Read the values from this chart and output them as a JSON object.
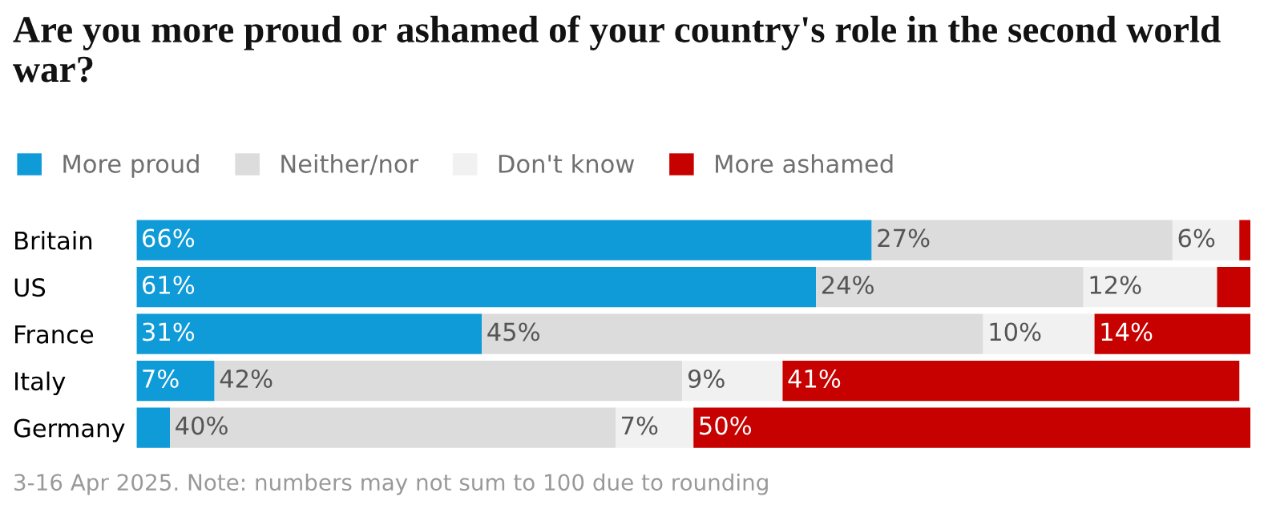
{
  "chart_data": {
    "type": "bar",
    "orientation": "horizontal",
    "stacked": true,
    "title": "Are you more proud or ashamed of your country's role in the second world war?",
    "categories": [
      "Britain",
      "US",
      "France",
      "Italy",
      "Germany"
    ],
    "series": [
      {
        "name": "More proud",
        "color": "#0f9ad8",
        "values": [
          66,
          61,
          31,
          7,
          3
        ],
        "value_labels": [
          "66%",
          "61%",
          "31%",
          "7%",
          null
        ]
      },
      {
        "name": "Neither/nor",
        "color": "#dcdcdc",
        "values": [
          27,
          24,
          45,
          42,
          40
        ],
        "value_labels": [
          "27%",
          "24%",
          "45%",
          "42%",
          "40%"
        ]
      },
      {
        "name": "Don't know",
        "color": "#f1f1f1",
        "values": [
          6,
          12,
          10,
          9,
          7
        ],
        "value_labels": [
          "6%",
          "12%",
          "10%",
          "9%",
          "7%"
        ]
      },
      {
        "name": "More ashamed",
        "color": "#c70000",
        "values": [
          1,
          3,
          14,
          41,
          50
        ],
        "value_labels": [
          null,
          null,
          "14%",
          "41%",
          "50%"
        ]
      }
    ],
    "legend": "top left",
    "annotations": [
      "3-16 Apr 2025. Note: numbers may not sum to 100 due to rounding"
    ]
  }
}
